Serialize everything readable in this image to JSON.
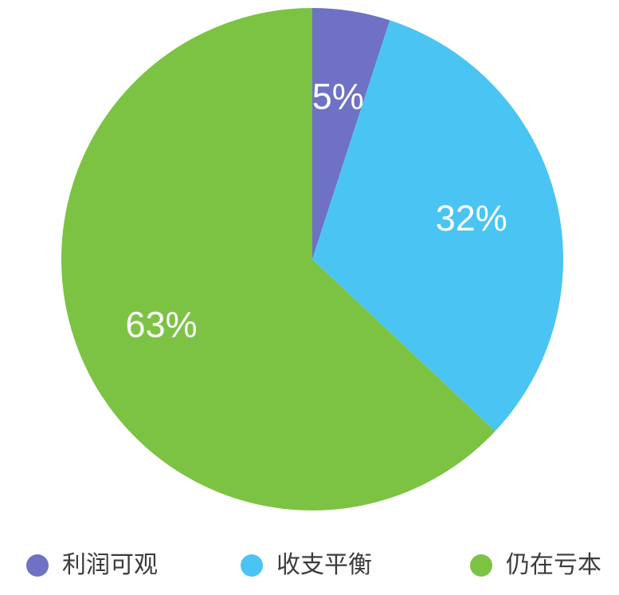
{
  "chart_data": {
    "type": "pie",
    "title": "",
    "total": 100,
    "legend_position": "bottom",
    "background": "#ffffff",
    "label_color": "#ffffff",
    "legend_text_color": "#3c3c3c",
    "slices": [
      {
        "label": "利润可观",
        "value": 5,
        "pct_label": "5%",
        "color": "#6f72c4"
      },
      {
        "label": "收支平衡",
        "value": 32,
        "pct_label": "32%",
        "color": "#4ac5f3"
      },
      {
        "label": "仍在亏本",
        "value": 63,
        "pct_label": "63%",
        "color": "#7cc344"
      }
    ]
  }
}
